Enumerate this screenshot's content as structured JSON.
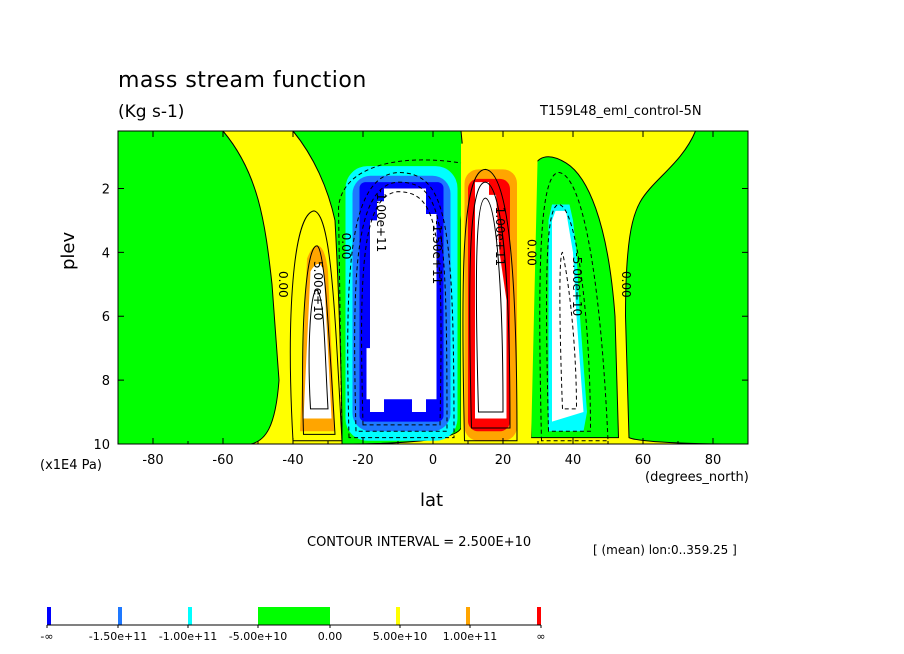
{
  "chart_data": {
    "type": "contour",
    "title": "mass stream function",
    "units": "(Kg s-1)",
    "run_label": "T159L48_eml_control-5N",
    "xlabel": "lat",
    "xunit_note": "(degrees_north)",
    "ylabel": "plev",
    "yunit_note": "(x1E4 Pa)",
    "xlim": [
      -90,
      90
    ],
    "ylim": [
      10,
      0.2
    ],
    "x_ticks": [
      -80,
      -60,
      -40,
      -20,
      0,
      20,
      40,
      60,
      80
    ],
    "y_ticks": [
      2,
      4,
      6,
      8,
      10
    ],
    "contour_interval_text": "CONTOUR INTERVAL = 2.500E+10",
    "mean_note": "[ (mean) lon:0..359.25 ]",
    "contour_labels": [
      "0.00",
      "5.00e+10",
      "0.00",
      "-1.00e+11",
      "-1.50e+11",
      "1.00e+11",
      "0.00",
      "-5.00e+10",
      "0.00"
    ],
    "colorbar": {
      "labels": [
        "-∞",
        "-1.50e+11",
        "-1.00e+11",
        "-5.00e+10",
        "0.00",
        "5.00e+10",
        "1.00e+11",
        "∞"
      ],
      "colors": [
        "#0000ff",
        "#1e78ff",
        "#00ffff",
        "#00ff00",
        "#ffff00",
        "#ffa500",
        "#ff0000"
      ]
    },
    "colors": {
      "positive_low": "#ffff00",
      "negative_low": "#00ff00",
      "orange": "#ffa500",
      "red": "#ff0000",
      "cyan": "#00ffff",
      "lightblue": "#1e78ff",
      "blue": "#0000ff",
      "white_extreme": "#ffffff"
    }
  }
}
